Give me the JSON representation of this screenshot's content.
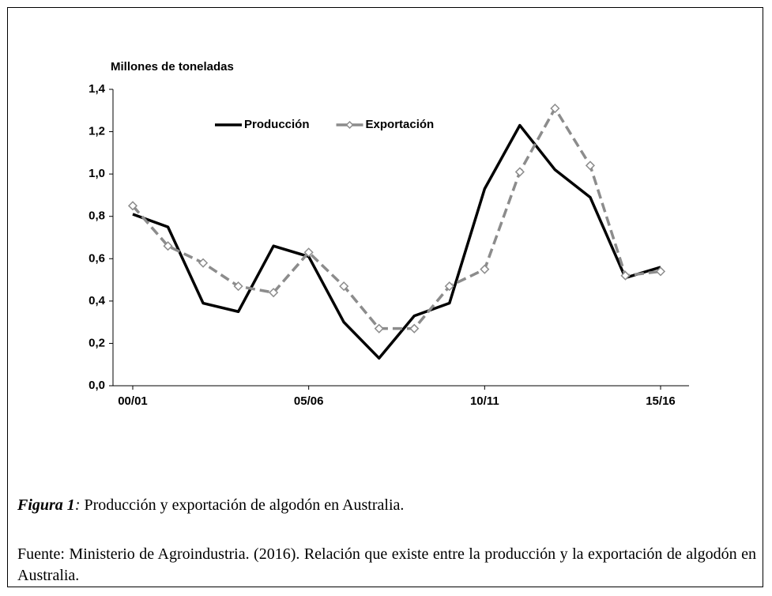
{
  "chart_data": {
    "type": "line",
    "ylabel": "Millones de toneladas",
    "categories": [
      "00/01",
      null,
      null,
      null,
      null,
      "05/06",
      null,
      null,
      null,
      null,
      "10/11",
      null,
      null,
      null,
      null,
      "15/16"
    ],
    "series": [
      {
        "name": "Producción",
        "color": "#000000",
        "line_style": "solid",
        "marker": "none",
        "values": [
          0.81,
          0.75,
          0.39,
          0.35,
          0.66,
          0.61,
          0.3,
          0.13,
          0.33,
          0.39,
          0.93,
          1.23,
          1.02,
          0.89,
          0.51,
          0.56
        ]
      },
      {
        "name": "Exportación",
        "color": "#8c8c8c",
        "line_style": "dashed",
        "marker": "diamond",
        "values": [
          0.85,
          0.66,
          0.58,
          0.47,
          0.44,
          0.63,
          0.47,
          0.27,
          0.27,
          0.47,
          0.55,
          1.01,
          1.31,
          1.04,
          0.52,
          0.54
        ]
      }
    ],
    "ylim": [
      0,
      1.4
    ],
    "yticks": [
      {
        "value": 0,
        "label": "0,0"
      },
      {
        "value": 0.2,
        "label": "0,2"
      },
      {
        "value": 0.4,
        "label": "0,4"
      },
      {
        "value": 0.6,
        "label": "0,6"
      },
      {
        "value": 0.8,
        "label": "0,8"
      },
      {
        "value": 1.0,
        "label": "1,0"
      },
      {
        "value": 1.2,
        "label": "1,2"
      },
      {
        "value": 1.4,
        "label": "1,4"
      }
    ],
    "grid": false,
    "legend": "top"
  },
  "caption": {
    "label": "Figura 1",
    "separator": ":",
    "text": " Producción y exportación de algodón en Australia."
  },
  "source": "Fuente: Ministerio de Agroindustria. (2016). Relación que existe entre la producción y la exportación de algodón en Australia."
}
